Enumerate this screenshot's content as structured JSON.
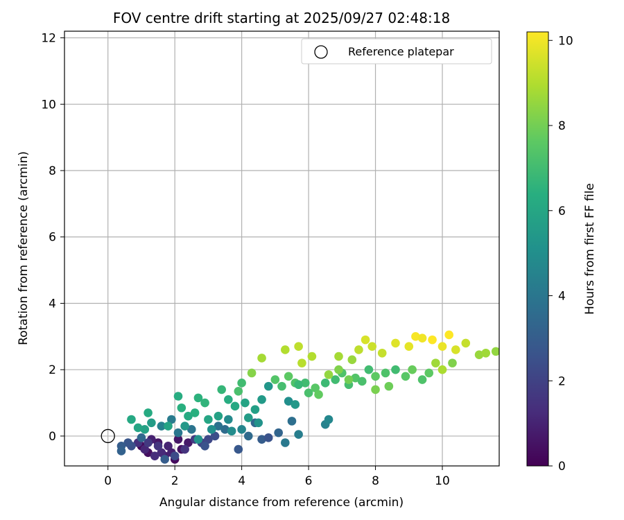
{
  "chart_data": {
    "type": "scatter",
    "title": "FOV centre drift starting at 2025/09/27 02:48:18",
    "xlabel": "Angular distance from reference (arcmin)",
    "ylabel": "Rotation from reference (arcmin)",
    "xlim": [
      -1.3,
      11.7
    ],
    "ylim": [
      -0.9,
      12.2
    ],
    "xticks": [
      0,
      2,
      4,
      6,
      8,
      10
    ],
    "yticks": [
      0,
      2,
      4,
      6,
      8,
      10,
      12
    ],
    "grid": true,
    "colormap": "viridis",
    "colorbar": {
      "label": "Hours from first FF file",
      "range": [
        0,
        10.2
      ],
      "ticks": [
        0,
        2,
        4,
        6,
        8,
        10
      ]
    },
    "legend": {
      "position": "top-right",
      "entries": [
        "Reference platepar"
      ]
    },
    "reference_point": {
      "x": 0,
      "y": 0,
      "label": "Reference platepar"
    },
    "series": [
      {
        "name": "FOV centre",
        "points": [
          [
            1.0,
            -0.3,
            0.2
          ],
          [
            1.2,
            -0.5,
            0.4
          ],
          [
            1.5,
            -0.2,
            0.6
          ],
          [
            1.7,
            -0.6,
            0.8
          ],
          [
            2.0,
            -0.7,
            0.3
          ],
          [
            2.2,
            -0.4,
            0.5
          ],
          [
            1.3,
            -0.1,
            0.9
          ],
          [
            1.8,
            -0.3,
            1.0
          ],
          [
            2.4,
            -0.2,
            0.7
          ],
          [
            1.6,
            -0.5,
            1.2
          ],
          [
            1.1,
            -0.4,
            1.1
          ],
          [
            2.1,
            -0.1,
            0.6
          ],
          [
            1.4,
            -0.6,
            1.3
          ],
          [
            0.9,
            -0.2,
            1.4
          ],
          [
            1.9,
            -0.5,
            0.9
          ],
          [
            2.3,
            -0.4,
            1.5
          ],
          [
            1.5,
            -0.3,
            1.6
          ],
          [
            1.2,
            -0.2,
            1.7
          ],
          [
            2.6,
            -0.1,
            1.8
          ],
          [
            2.8,
            -0.2,
            2.0
          ],
          [
            3.0,
            -0.1,
            2.2
          ],
          [
            3.2,
            0.0,
            2.4
          ],
          [
            2.9,
            -0.3,
            2.6
          ],
          [
            0.7,
            -0.3,
            2.5
          ],
          [
            0.6,
            -0.2,
            2.7
          ],
          [
            0.4,
            -0.3,
            3.0
          ],
          [
            0.4,
            -0.45,
            3.2
          ],
          [
            1.0,
            -0.05,
            3.4
          ],
          [
            1.7,
            -0.7,
            3.0
          ],
          [
            2.0,
            -0.6,
            2.3
          ],
          [
            3.5,
            0.2,
            3.6
          ],
          [
            3.3,
            0.3,
            3.8
          ],
          [
            2.5,
            0.2,
            3.9
          ],
          [
            2.1,
            0.1,
            4.0
          ],
          [
            1.9,
            0.5,
            4.2
          ],
          [
            1.6,
            0.3,
            4.4
          ],
          [
            4.2,
            0.0,
            3.5
          ],
          [
            4.6,
            -0.1,
            3.0
          ],
          [
            4.8,
            -0.05,
            2.6
          ],
          [
            5.1,
            0.1,
            3.3
          ],
          [
            3.9,
            -0.4,
            2.8
          ],
          [
            5.3,
            -0.2,
            4.1
          ],
          [
            5.5,
            0.45,
            3.7
          ],
          [
            5.7,
            0.05,
            4.3
          ],
          [
            4.4,
            0.4,
            3.4
          ],
          [
            4.0,
            0.2,
            4.6
          ],
          [
            3.6,
            0.5,
            4.8
          ],
          [
            3.1,
            0.2,
            5.0
          ],
          [
            2.7,
            -0.1,
            5.2
          ],
          [
            2.3,
            0.3,
            5.4
          ],
          [
            1.3,
            0.4,
            5.6
          ],
          [
            1.1,
            0.2,
            5.8
          ],
          [
            0.9,
            0.25,
            6.0
          ],
          [
            0.7,
            0.5,
            6.1
          ],
          [
            1.2,
            0.7,
            6.2
          ],
          [
            2.1,
            1.2,
            6.3
          ],
          [
            2.2,
            0.85,
            6.4
          ],
          [
            2.7,
            1.15,
            6.5
          ],
          [
            2.9,
            1.0,
            6.6
          ],
          [
            3.4,
            1.4,
            6.7
          ],
          [
            3.6,
            1.1,
            6.3
          ],
          [
            3.8,
            0.9,
            6.1
          ],
          [
            4.1,
            1.0,
            5.9
          ],
          [
            4.4,
            0.8,
            5.7
          ],
          [
            4.6,
            1.1,
            5.5
          ],
          [
            4.8,
            1.5,
            5.3
          ],
          [
            5.4,
            1.05,
            5.0
          ],
          [
            6.5,
            0.35,
            4.5
          ],
          [
            6.6,
            0.5,
            4.7
          ],
          [
            5.6,
            0.95,
            5.4
          ],
          [
            3.0,
            0.5,
            6.0
          ],
          [
            3.3,
            0.6,
            5.8
          ],
          [
            2.4,
            0.6,
            6.2
          ],
          [
            2.6,
            0.7,
            6.4
          ],
          [
            1.8,
            0.3,
            5.9
          ],
          [
            4.0,
            1.6,
            7.0
          ],
          [
            3.9,
            1.35,
            7.2
          ],
          [
            4.3,
            1.9,
            8.3
          ],
          [
            4.6,
            2.35,
            8.8
          ],
          [
            5.0,
            1.7,
            7.4
          ],
          [
            5.2,
            1.5,
            7.1
          ],
          [
            5.4,
            1.8,
            7.6
          ],
          [
            5.6,
            1.6,
            7.3
          ],
          [
            5.9,
            1.6,
            7.0
          ],
          [
            6.0,
            1.3,
            7.2
          ],
          [
            6.2,
            1.45,
            7.5
          ],
          [
            6.5,
            1.6,
            6.9
          ],
          [
            6.8,
            1.7,
            7.0
          ],
          [
            7.0,
            1.9,
            7.3
          ],
          [
            7.2,
            1.55,
            7.1
          ],
          [
            7.4,
            1.75,
            7.4
          ],
          [
            7.6,
            1.65,
            7.2
          ],
          [
            7.8,
            2.0,
            7.0
          ],
          [
            8.0,
            1.8,
            7.6
          ],
          [
            8.3,
            1.9,
            7.3
          ],
          [
            8.6,
            2.0,
            7.0
          ],
          [
            8.9,
            1.8,
            7.5
          ],
          [
            9.1,
            2.0,
            7.8
          ],
          [
            9.4,
            1.7,
            7.3
          ],
          [
            9.6,
            1.9,
            7.6
          ],
          [
            5.3,
            2.6,
            9.0
          ],
          [
            5.7,
            2.7,
            9.2
          ],
          [
            5.8,
            2.2,
            9.1
          ],
          [
            6.1,
            2.4,
            9.0
          ],
          [
            6.9,
            2.4,
            8.8
          ],
          [
            7.3,
            2.3,
            8.6
          ],
          [
            7.5,
            2.6,
            9.2
          ],
          [
            7.7,
            2.9,
            9.6
          ],
          [
            7.9,
            2.7,
            9.4
          ],
          [
            8.2,
            2.5,
            9.3
          ],
          [
            8.6,
            2.8,
            9.7
          ],
          [
            9.0,
            2.7,
            9.8
          ],
          [
            9.2,
            3.0,
            10.1
          ],
          [
            9.4,
            2.95,
            10.0
          ],
          [
            9.7,
            2.9,
            10.2
          ],
          [
            10.0,
            2.7,
            9.9
          ],
          [
            10.2,
            3.05,
            10.2
          ],
          [
            10.4,
            2.6,
            9.6
          ],
          [
            10.7,
            2.8,
            9.3
          ],
          [
            11.1,
            2.45,
            8.6
          ],
          [
            11.3,
            2.5,
            8.7
          ],
          [
            11.6,
            2.55,
            8.5
          ],
          [
            10.0,
            2.0,
            8.9
          ],
          [
            9.8,
            2.2,
            8.7
          ],
          [
            10.3,
            2.2,
            8.2
          ],
          [
            6.6,
            1.85,
            8.5
          ],
          [
            6.9,
            2.0,
            8.2
          ],
          [
            7.2,
            1.7,
            8.0
          ],
          [
            8.0,
            1.4,
            8.1
          ],
          [
            8.4,
            1.5,
            7.9
          ],
          [
            4.5,
            0.4,
            5.2
          ],
          [
            3.7,
            0.15,
            4.9
          ],
          [
            4.2,
            0.55,
            5.6
          ],
          [
            5.7,
            1.55,
            6.8
          ],
          [
            6.3,
            1.25,
            7.7
          ]
        ]
      }
    ]
  }
}
